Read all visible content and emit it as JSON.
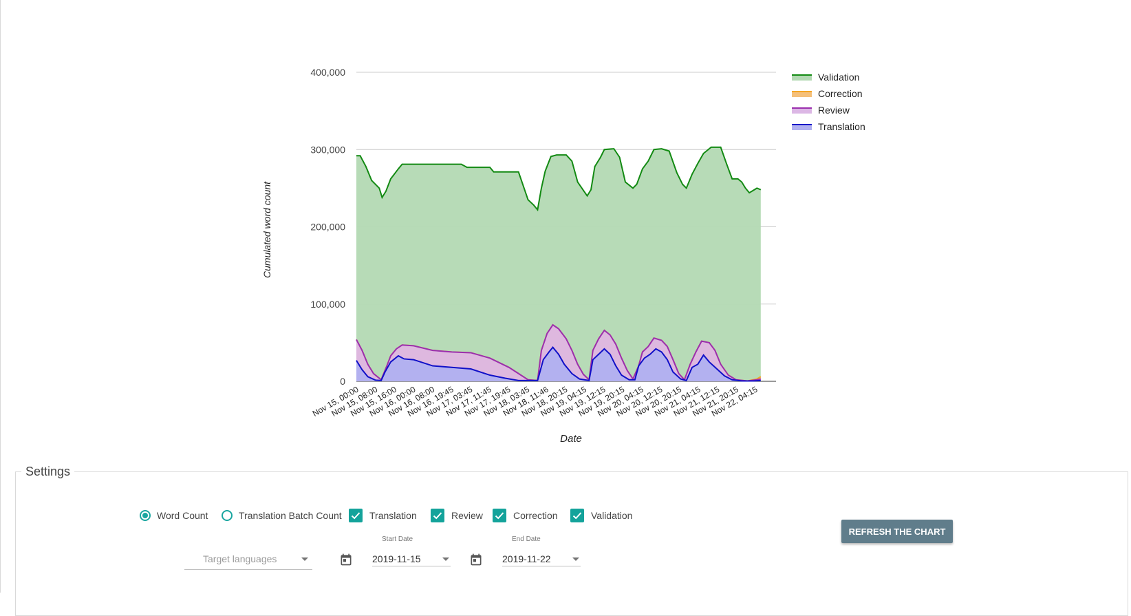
{
  "chart_data": {
    "type": "area",
    "stacked": false,
    "ylabel": "Cumulated word count",
    "xlabel": "Date",
    "ylim": [
      0,
      400000
    ],
    "y_ticks": [
      "0",
      "100,000",
      "200,000",
      "300,000",
      "400,000"
    ],
    "y_tick_values": [
      0,
      100000,
      200000,
      300000,
      400000
    ],
    "x_ticks": [
      "Nov 15, 00:00",
      "Nov 15, 08:00",
      "Nov 15, 16:00",
      "Nov 16, 00:00",
      "Nov 16, 08:00",
      "Nov 16, 19:45",
      "Nov 17, 03:45",
      "Nov 17, 11:45",
      "Nov 17, 19:45",
      "Nov 18, 03:45",
      "Nov 18, 11:46",
      "Nov 18, 20:15",
      "Nov 19, 04:15",
      "Nov 19, 12:15",
      "Nov 19, 20:15",
      "Nov 20, 04:15",
      "Nov 20, 12:15",
      "Nov 20, 20:15",
      "Nov 21, 04:15",
      "Nov 21, 12:15",
      "Nov 21, 20:15",
      "Nov 22, 04:15"
    ],
    "x_range": [
      0,
      22
    ],
    "legend_position": "top-right",
    "series": [
      {
        "name": "Validation",
        "color": "#138a13",
        "fill": "#b3d9b3",
        "points": [
          [
            0,
            292000
          ],
          [
            0.2,
            292000
          ],
          [
            0.5,
            278000
          ],
          [
            0.8,
            260000
          ],
          [
            1.2,
            250000
          ],
          [
            1.35,
            238000
          ],
          [
            1.55,
            246000
          ],
          [
            1.8,
            262000
          ],
          [
            2.2,
            275000
          ],
          [
            2.4,
            281000
          ],
          [
            3,
            281000
          ],
          [
            4,
            281000
          ],
          [
            5,
            281000
          ],
          [
            5.5,
            281000
          ],
          [
            5.8,
            277000
          ],
          [
            6.5,
            277000
          ],
          [
            7,
            277000
          ],
          [
            7.2,
            271000
          ],
          [
            8,
            271000
          ],
          [
            8.5,
            271000
          ],
          [
            9,
            235000
          ],
          [
            9.3,
            228000
          ],
          [
            9.5,
            222000
          ],
          [
            9.7,
            250000
          ],
          [
            9.9,
            272000
          ],
          [
            10.2,
            291000
          ],
          [
            10.5,
            293000
          ],
          [
            11.0,
            293000
          ],
          [
            11.3,
            285000
          ],
          [
            11.6,
            258000
          ],
          [
            12.1,
            240000
          ],
          [
            12.3,
            248000
          ],
          [
            12.5,
            278000
          ],
          [
            12.8,
            290000
          ],
          [
            13.0,
            300000
          ],
          [
            13.5,
            301000
          ],
          [
            13.8,
            290000
          ],
          [
            14.1,
            258000
          ],
          [
            14.5,
            250000
          ],
          [
            14.7,
            255000
          ],
          [
            15.0,
            275000
          ],
          [
            15.3,
            285000
          ],
          [
            15.6,
            300000
          ],
          [
            16.0,
            301000
          ],
          [
            16.4,
            298000
          ],
          [
            16.8,
            270000
          ],
          [
            17.1,
            255000
          ],
          [
            17.3,
            250000
          ],
          [
            17.6,
            268000
          ],
          [
            17.9,
            282000
          ],
          [
            18.2,
            295000
          ],
          [
            18.6,
            303000
          ],
          [
            19.1,
            303000
          ],
          [
            19.4,
            282000
          ],
          [
            19.7,
            262000
          ],
          [
            20.0,
            262000
          ],
          [
            20.2,
            258000
          ],
          [
            20.4,
            250000
          ],
          [
            20.6,
            244000
          ],
          [
            20.8,
            247000
          ],
          [
            21.0,
            250000
          ],
          [
            21.2,
            248000
          ]
        ]
      },
      {
        "name": "Correction",
        "color": "#f5a623",
        "fill": "#f5c07a",
        "points": [
          [
            0,
            54000
          ],
          [
            0.3,
            40000
          ],
          [
            0.6,
            22000
          ],
          [
            0.9,
            10000
          ],
          [
            1.3,
            2000
          ],
          [
            1.6,
            20000
          ],
          [
            1.8,
            33000
          ],
          [
            2.1,
            42000
          ],
          [
            2.4,
            47000
          ],
          [
            3.0,
            46000
          ],
          [
            4.0,
            40000
          ],
          [
            5,
            38000
          ],
          [
            6,
            37000
          ],
          [
            7,
            30000
          ],
          [
            8,
            18000
          ],
          [
            8.5,
            10000
          ],
          [
            9.0,
            2000
          ],
          [
            9.5,
            1000
          ],
          [
            9.7,
            40000
          ],
          [
            10.0,
            62000
          ],
          [
            10.3,
            73000
          ],
          [
            10.6,
            68000
          ],
          [
            11.0,
            55000
          ],
          [
            11.3,
            40000
          ],
          [
            11.6,
            22000
          ],
          [
            11.9,
            9000
          ],
          [
            12.2,
            2000
          ],
          [
            12.4,
            40000
          ],
          [
            12.7,
            55000
          ],
          [
            13.0,
            66000
          ],
          [
            13.3,
            60000
          ],
          [
            13.6,
            48000
          ],
          [
            13.9,
            30000
          ],
          [
            14.2,
            14000
          ],
          [
            14.5,
            3000
          ],
          [
            14.8,
            20000
          ],
          [
            15.0,
            38000
          ],
          [
            15.3,
            45000
          ],
          [
            15.6,
            56000
          ],
          [
            16.0,
            53000
          ],
          [
            16.3,
            45000
          ],
          [
            16.6,
            28000
          ],
          [
            16.9,
            10000
          ],
          [
            17.2,
            2000
          ],
          [
            17.5,
            22000
          ],
          [
            17.8,
            38000
          ],
          [
            18.1,
            52000
          ],
          [
            18.5,
            50000
          ],
          [
            18.8,
            40000
          ],
          [
            19.1,
            22000
          ],
          [
            19.5,
            8000
          ],
          [
            19.9,
            2000
          ],
          [
            20.5,
            500
          ],
          [
            21.0,
            3000
          ],
          [
            21.2,
            6000
          ]
        ]
      },
      {
        "name": "Review",
        "color": "#9b2fae",
        "fill": "#dcb7e5",
        "points": [
          [
            0,
            54000
          ],
          [
            0.3,
            40000
          ],
          [
            0.6,
            22000
          ],
          [
            0.9,
            10000
          ],
          [
            1.3,
            2000
          ],
          [
            1.6,
            20000
          ],
          [
            1.8,
            33000
          ],
          [
            2.1,
            42000
          ],
          [
            2.4,
            47000
          ],
          [
            3.0,
            46000
          ],
          [
            4.0,
            40000
          ],
          [
            5,
            38000
          ],
          [
            6,
            37000
          ],
          [
            7,
            30000
          ],
          [
            8,
            18000
          ],
          [
            8.5,
            10000
          ],
          [
            9.0,
            2000
          ],
          [
            9.5,
            1000
          ],
          [
            9.7,
            40000
          ],
          [
            10.0,
            62000
          ],
          [
            10.3,
            73000
          ],
          [
            10.6,
            68000
          ],
          [
            11.0,
            55000
          ],
          [
            11.3,
            40000
          ],
          [
            11.6,
            22000
          ],
          [
            11.9,
            9000
          ],
          [
            12.2,
            2000
          ],
          [
            12.4,
            40000
          ],
          [
            12.7,
            55000
          ],
          [
            13.0,
            66000
          ],
          [
            13.3,
            60000
          ],
          [
            13.6,
            48000
          ],
          [
            13.9,
            30000
          ],
          [
            14.2,
            14000
          ],
          [
            14.5,
            3000
          ],
          [
            14.8,
            20000
          ],
          [
            15.0,
            38000
          ],
          [
            15.3,
            45000
          ],
          [
            15.6,
            56000
          ],
          [
            16.0,
            53000
          ],
          [
            16.3,
            45000
          ],
          [
            16.6,
            28000
          ],
          [
            16.9,
            10000
          ],
          [
            17.2,
            2000
          ],
          [
            17.5,
            22000
          ],
          [
            17.8,
            38000
          ],
          [
            18.1,
            52000
          ],
          [
            18.5,
            50000
          ],
          [
            18.8,
            40000
          ],
          [
            19.1,
            22000
          ],
          [
            19.5,
            8000
          ],
          [
            19.9,
            2000
          ],
          [
            20.5,
            500
          ],
          [
            21.0,
            2000
          ],
          [
            21.2,
            3000
          ]
        ]
      },
      {
        "name": "Translation",
        "color": "#1010c8",
        "fill": "#b0b0f0",
        "points": [
          [
            0,
            27000
          ],
          [
            0.3,
            15000
          ],
          [
            0.6,
            6000
          ],
          [
            1.0,
            1500
          ],
          [
            1.3,
            1000
          ],
          [
            1.5,
            12000
          ],
          [
            1.8,
            25000
          ],
          [
            2.2,
            33000
          ],
          [
            2.5,
            29000
          ],
          [
            3.0,
            28000
          ],
          [
            4.0,
            20000
          ],
          [
            5.0,
            18000
          ],
          [
            6.0,
            16000
          ],
          [
            7.0,
            8000
          ],
          [
            7.8,
            4000
          ],
          [
            8.5,
            1000
          ],
          [
            9.5,
            1000
          ],
          [
            9.8,
            28000
          ],
          [
            10.1,
            38000
          ],
          [
            10.3,
            44000
          ],
          [
            10.6,
            35000
          ],
          [
            10.9,
            22000
          ],
          [
            11.3,
            10000
          ],
          [
            11.7,
            3000
          ],
          [
            12.2,
            1000
          ],
          [
            12.4,
            28000
          ],
          [
            12.7,
            35000
          ],
          [
            13.0,
            42000
          ],
          [
            13.3,
            35000
          ],
          [
            13.6,
            20000
          ],
          [
            13.9,
            8000
          ],
          [
            14.3,
            2000
          ],
          [
            14.6,
            2000
          ],
          [
            14.8,
            20000
          ],
          [
            15.1,
            30000
          ],
          [
            15.4,
            35000
          ],
          [
            15.7,
            42000
          ],
          [
            16.0,
            38000
          ],
          [
            16.3,
            28000
          ],
          [
            16.6,
            12000
          ],
          [
            17.0,
            3000
          ],
          [
            17.3,
            1000
          ],
          [
            17.6,
            18000
          ],
          [
            17.9,
            22000
          ],
          [
            18.2,
            34000
          ],
          [
            18.5,
            25000
          ],
          [
            18.9,
            16000
          ],
          [
            19.3,
            7000
          ],
          [
            19.7,
            2000
          ],
          [
            20.2,
            500
          ],
          [
            20.8,
            500
          ],
          [
            21.2,
            1000
          ]
        ]
      }
    ]
  },
  "settings": {
    "legend": "Settings",
    "radio_word_count": "Word Count",
    "radio_batch_count": "Translation Batch Count",
    "check_translation": "Translation",
    "check_review": "Review",
    "check_correction": "Correction",
    "check_validation": "Validation",
    "target_languages_placeholder": "Target languages",
    "start_date_label": "Start Date",
    "start_date_value": "2019-11-15",
    "end_date_label": "End Date",
    "end_date_value": "2019-11-22",
    "refresh_button": "REFRESH THE CHART"
  }
}
